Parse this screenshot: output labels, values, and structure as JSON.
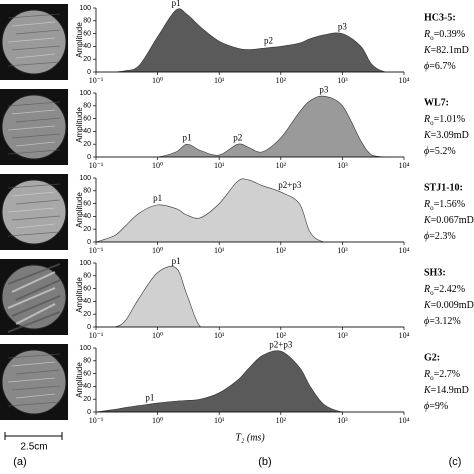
{
  "chart_data": [
    {
      "type": "area",
      "ylabel": "Amplitude",
      "color": "#5a5a5a",
      "log_x": true,
      "xlim": [
        0.1,
        10000
      ],
      "ylim": [
        0,
        100
      ],
      "xticks": [
        {
          "value": 0.1,
          "label": "10⁻¹"
        },
        {
          "value": 1,
          "label": "10⁰"
        },
        {
          "value": 10,
          "label": "10¹"
        },
        {
          "value": 100,
          "label": "10²"
        },
        {
          "value": 1000,
          "label": "10³"
        },
        {
          "value": 10000,
          "label": "10⁴"
        }
      ],
      "yticks": [
        0,
        20,
        40,
        60,
        80,
        100
      ],
      "x": [
        0.1,
        0.2,
        0.3,
        0.5,
        1,
        2,
        3,
        5,
        10,
        20,
        30,
        50,
        100,
        200,
        300,
        500,
        1000,
        2000,
        3000,
        5000,
        10000
      ],
      "values": [
        0,
        0,
        2,
        10,
        55,
        97,
        90,
        70,
        48,
        37,
        35,
        37,
        40,
        45,
        52,
        58,
        60,
        40,
        12,
        0,
        0
      ],
      "annotations": [
        {
          "text": "p1",
          "x": 2,
          "y": 97
        },
        {
          "text": "p2",
          "x": 63,
          "y": 38
        },
        {
          "text": "p3",
          "x": 1000,
          "y": 60
        }
      ]
    },
    {
      "type": "area",
      "ylabel": "Amplitude",
      "color": "#9a9a9a",
      "log_x": true,
      "xlim": [
        0.1,
        10000
      ],
      "ylim": [
        0,
        100
      ],
      "xticks": [
        {
          "value": 0.1,
          "label": "10⁻¹"
        },
        {
          "value": 1,
          "label": "10⁰"
        },
        {
          "value": 10,
          "label": "10¹"
        },
        {
          "value": 100,
          "label": "10²"
        },
        {
          "value": 1000,
          "label": "10³"
        },
        {
          "value": 10000,
          "label": "10⁴"
        }
      ],
      "yticks": [
        0,
        20,
        40,
        60,
        80,
        100
      ],
      "x": [
        0.1,
        0.2,
        0.3,
        0.5,
        1,
        2,
        3,
        5,
        10,
        20,
        30,
        50,
        100,
        200,
        300,
        500,
        1000,
        2000,
        3000,
        5000,
        10000
      ],
      "values": [
        0,
        0,
        0,
        0,
        0,
        8,
        20,
        10,
        3,
        20,
        15,
        8,
        30,
        70,
        88,
        95,
        80,
        25,
        3,
        0,
        0
      ],
      "annotations": [
        {
          "text": "p1",
          "x": 3,
          "y": 20
        },
        {
          "text": "p2",
          "x": 20,
          "y": 20
        },
        {
          "text": "p3",
          "x": 500,
          "y": 95
        }
      ]
    },
    {
      "type": "area",
      "ylabel": "Amplitude",
      "color": "#d0d0d0",
      "log_x": true,
      "xlim": [
        0.1,
        10000
      ],
      "ylim": [
        0,
        100
      ],
      "xticks": [
        {
          "value": 0.1,
          "label": "10⁻¹"
        },
        {
          "value": 1,
          "label": "10⁰"
        },
        {
          "value": 10,
          "label": "10¹"
        },
        {
          "value": 100,
          "label": "10²"
        },
        {
          "value": 1000,
          "label": "10³"
        },
        {
          "value": 10000,
          "label": "10⁴"
        }
      ],
      "yticks": [
        0,
        20,
        40,
        60,
        80,
        100
      ],
      "x": [
        0.1,
        0.2,
        0.3,
        0.5,
        1,
        2,
        3,
        5,
        10,
        20,
        30,
        50,
        100,
        200,
        300,
        500,
        1000,
        2000,
        3000,
        5000,
        10000
      ],
      "values": [
        0,
        10,
        25,
        45,
        58,
        52,
        42,
        38,
        60,
        95,
        97,
        88,
        78,
        60,
        15,
        0,
        0,
        0,
        0,
        0,
        0
      ],
      "annotations": [
        {
          "text": "p1",
          "x": 1,
          "y": 58
        },
        {
          "text": "p2+p3",
          "x": 140,
          "y": 78
        }
      ]
    },
    {
      "type": "area",
      "ylabel": "Amplitude",
      "color": "#d0d0d0",
      "log_x": true,
      "xlim": [
        0.1,
        10000
      ],
      "ylim": [
        0,
        100
      ],
      "xticks": [
        {
          "value": 0.1,
          "label": "10⁻¹"
        },
        {
          "value": 1,
          "label": "10⁰"
        },
        {
          "value": 10,
          "label": "10¹"
        },
        {
          "value": 100,
          "label": "10²"
        },
        {
          "value": 1000,
          "label": "10³"
        },
        {
          "value": 10000,
          "label": "10⁴"
        }
      ],
      "yticks": [
        0,
        20,
        40,
        60,
        80,
        100
      ],
      "x": [
        0.1,
        0.2,
        0.3,
        0.5,
        1,
        2,
        3,
        5,
        10,
        20,
        30,
        50,
        100,
        200,
        300,
        500,
        1000,
        2000,
        3000,
        5000,
        10000
      ],
      "values": [
        0,
        0,
        10,
        45,
        85,
        92,
        50,
        0,
        0,
        0,
        0,
        0,
        0,
        0,
        0,
        0,
        0,
        0,
        0,
        0,
        0
      ],
      "annotations": [
        {
          "text": "p1",
          "x": 2,
          "y": 92
        }
      ]
    },
    {
      "type": "area",
      "ylabel": "Amplitude",
      "color": "#5a5a5a",
      "log_x": true,
      "xlabel": "T₂ (ms)",
      "xlim": [
        0.1,
        10000
      ],
      "ylim": [
        0,
        100
      ],
      "xticks": [
        {
          "value": 0.1,
          "label": "10⁻¹"
        },
        {
          "value": 1,
          "label": "10⁰"
        },
        {
          "value": 10,
          "label": "10¹"
        },
        {
          "value": 100,
          "label": "10²"
        },
        {
          "value": 1000,
          "label": "10³"
        },
        {
          "value": 10000,
          "label": "10⁴"
        }
      ],
      "yticks": [
        0,
        20,
        40,
        60,
        80,
        100
      ],
      "x": [
        0.1,
        0.2,
        0.3,
        0.5,
        1,
        2,
        3,
        5,
        10,
        20,
        30,
        50,
        100,
        200,
        300,
        500,
        1000,
        2000,
        3000,
        5000,
        10000
      ],
      "values": [
        0,
        4,
        7,
        10,
        14,
        17,
        18,
        20,
        30,
        50,
        68,
        88,
        95,
        70,
        40,
        12,
        0,
        0,
        0,
        0,
        0
      ],
      "annotations": [
        {
          "text": "p1",
          "x": 0.75,
          "y": 12
        },
        {
          "text": "p2+p3",
          "x": 100,
          "y": 95
        }
      ]
    }
  ],
  "property_symbols": {
    "ro": "R",
    "ro_sub": "o",
    "k": "K",
    "phi": "ϕ"
  },
  "samples": [
    {
      "name": "HC3-5:",
      "ro": "=0.39%",
      "k": "=82.1mD",
      "phi": "=6.7%"
    },
    {
      "name": "WL7:",
      "ro": "=1.01%",
      "k": "=3.09mD",
      "phi": "=5.2%"
    },
    {
      "name": "STJ1-10:",
      "ro": "=1.56%",
      "k": "=0.067mD",
      "phi": "=2.3%"
    },
    {
      "name": "SH3:",
      "ro": "=2.42%",
      "k": "=0.009mD",
      "phi": "=3.12%"
    },
    {
      "name": "G2:",
      "ro": "=2.7%",
      "k": "=14.9mD",
      "phi": "=9%"
    }
  ],
  "scale_bar": "2.5cm",
  "panel_labels": [
    "(a)",
    "(b)",
    "(c)"
  ]
}
